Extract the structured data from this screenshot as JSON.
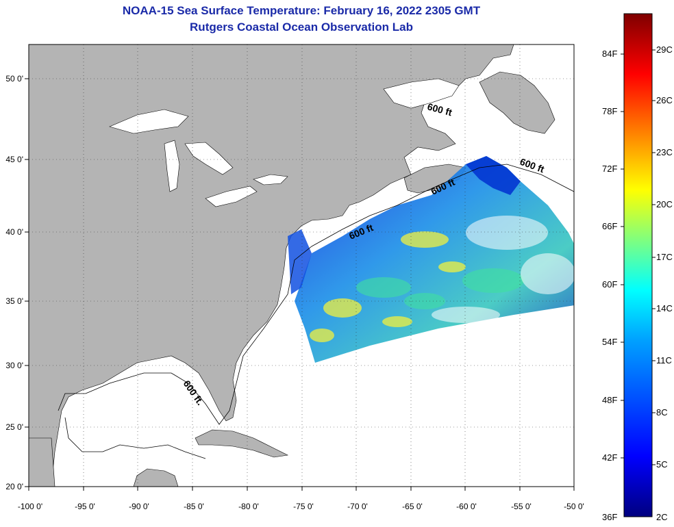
{
  "title": "NOAA-15 Sea Surface Temperature:  February 16, 2022 2305 GMT",
  "subtitle": "Rutgers Coastal Ocean Observation Lab",
  "lon_ticks": [
    "-100 0'",
    "-95 0'",
    "-90 0'",
    "-85 0'",
    "-80 0'",
    "-75 0'",
    "-70 0'",
    "-65 0'",
    "-60 0'",
    "-55 0'",
    "-50 0'"
  ],
  "lat_ticks": [
    "50 0'",
    "45 0'",
    "40 0'",
    "35 0'",
    "30 0'",
    "25 0'",
    "20 0'"
  ],
  "contour_labels": [
    "600 ft",
    "600 ft",
    "600 ft",
    "600 ft",
    "600 ft."
  ],
  "colorbar": {
    "fahrenheit": [
      "84F",
      "78F",
      "72F",
      "66F",
      "60F",
      "54F",
      "48F",
      "42F",
      "36F"
    ],
    "celsius": [
      "29C",
      "26C",
      "23C",
      "20C",
      "17C",
      "14C",
      "11C",
      "8C",
      "5C",
      "2C"
    ]
  },
  "colors": {
    "land": "#b4b4b4",
    "water": "#ffffff",
    "title": "#1a2aa8"
  }
}
